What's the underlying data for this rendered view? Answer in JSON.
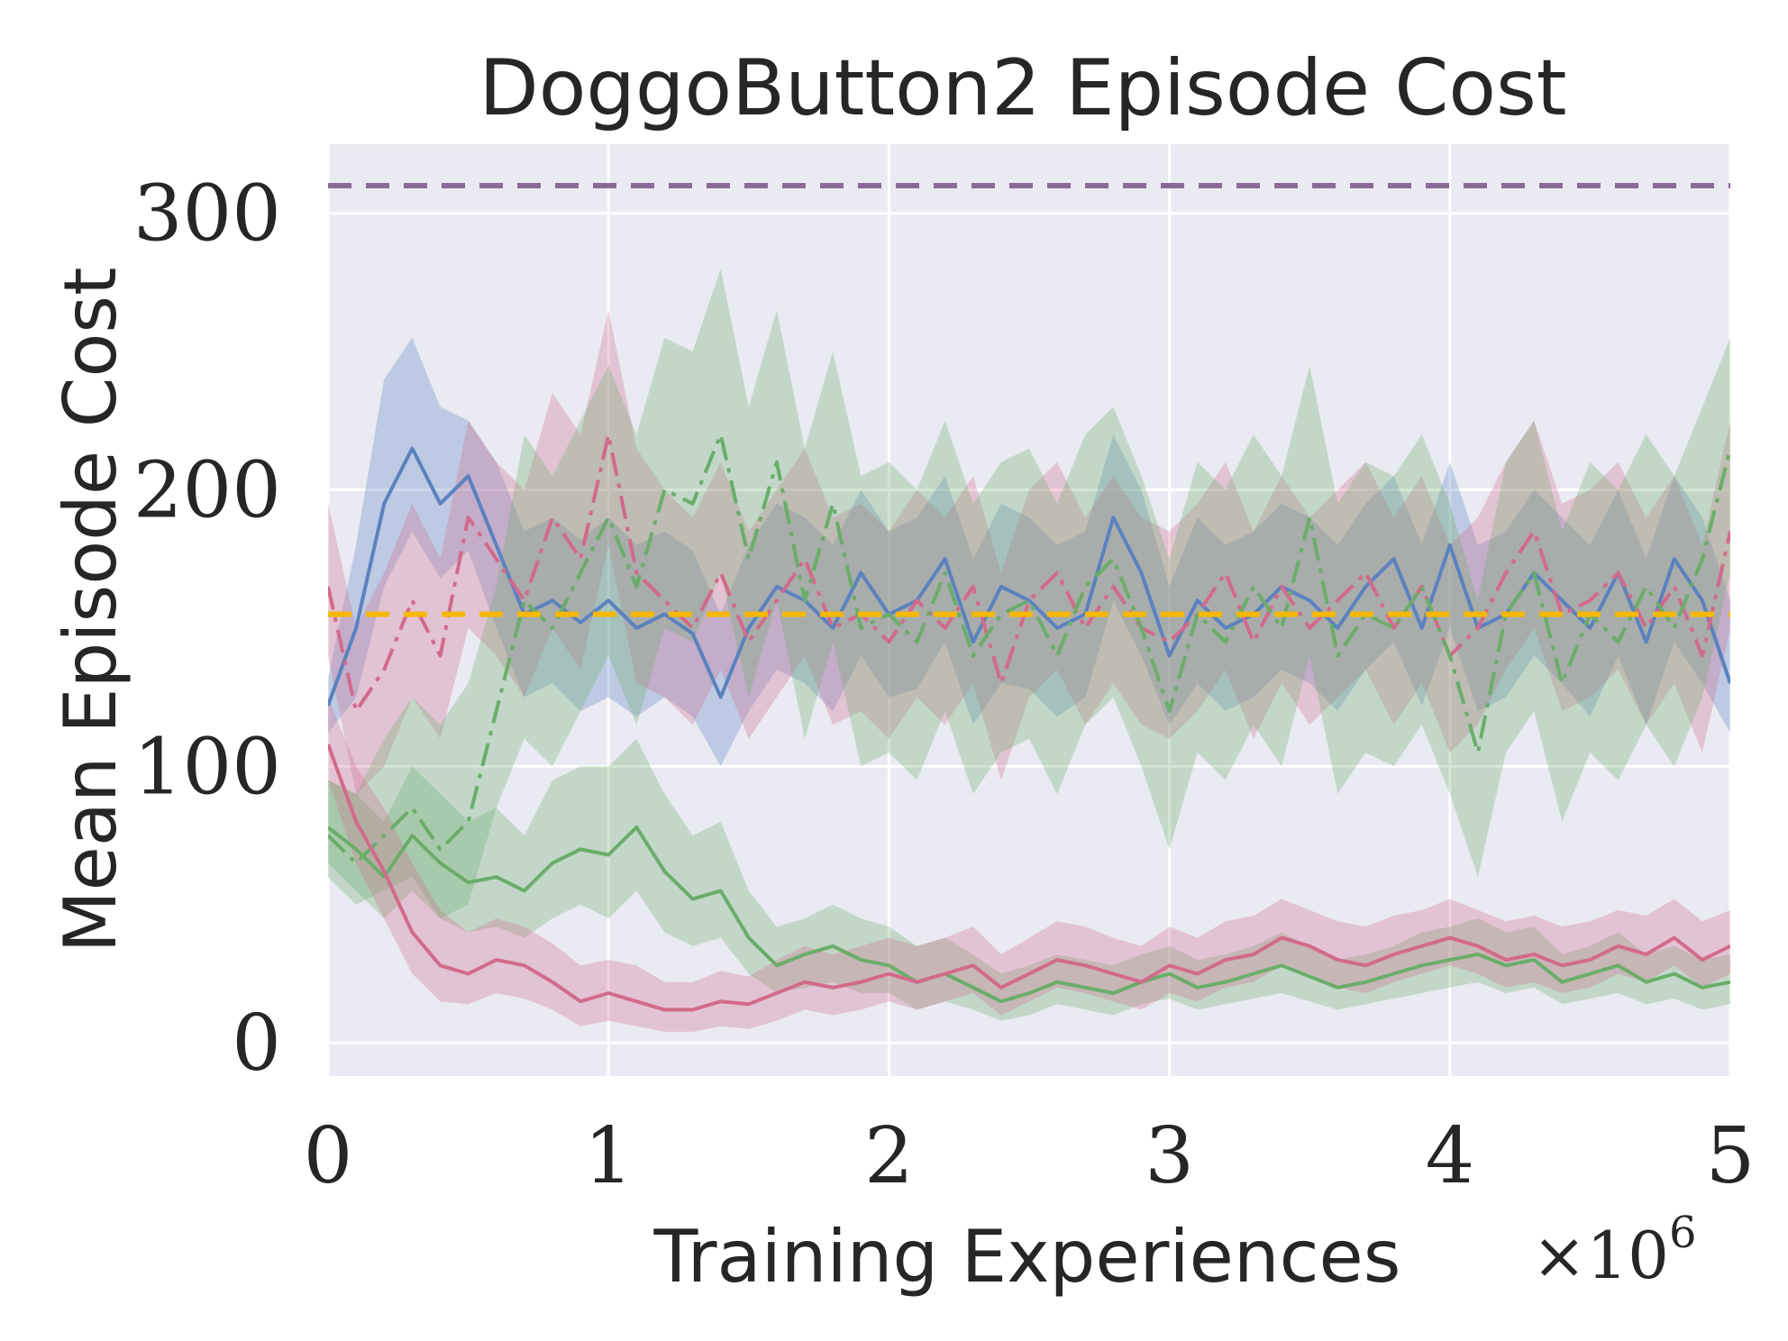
{
  "chart_data": {
    "type": "line",
    "title": "DoggoButton2 Episode Cost",
    "xlabel": "Training Experiences",
    "ylabel": "Mean Episode Cost",
    "x_multiplier": "×10",
    "x_multiplier_exp": "6",
    "xlim": [
      0,
      5
    ],
    "ylim": [
      -12,
      325
    ],
    "x_ticks": [
      0,
      1,
      2,
      3,
      4,
      5
    ],
    "x_tick_labels": [
      "0",
      "1",
      "2",
      "3",
      "4",
      "5"
    ],
    "y_ticks": [
      0,
      100,
      200,
      300
    ],
    "y_tick_labels": [
      "0",
      "100",
      "200",
      "300"
    ],
    "grid": true,
    "colors": {
      "background": "#eaeaf2",
      "grid": "#ffffff",
      "blue": "#5b82bf",
      "pink": "#d26a8b",
      "green": "#6aad6a",
      "purple": "#8a6a96",
      "gold": "#f5b800"
    },
    "reference_lines": [
      {
        "name": "upper-dashed",
        "y": 310,
        "color": "#8a6a96"
      },
      {
        "name": "cost-limit",
        "y": 155,
        "color": "#f5b800"
      }
    ],
    "series": [
      {
        "name": "blue-solid",
        "color": "#5b82bf",
        "style": "solid",
        "x": [
          0,
          0.1,
          0.2,
          0.3,
          0.4,
          0.5,
          0.6,
          0.7,
          0.8,
          0.9,
          1.0,
          1.1,
          1.2,
          1.3,
          1.4,
          1.5,
          1.6,
          1.7,
          1.8,
          1.9,
          2.0,
          2.1,
          2.2,
          2.3,
          2.4,
          2.5,
          2.6,
          2.7,
          2.8,
          2.9,
          3.0,
          3.1,
          3.2,
          3.3,
          3.4,
          3.5,
          3.6,
          3.7,
          3.8,
          3.9,
          4.0,
          4.1,
          4.2,
          4.3,
          4.4,
          4.5,
          4.6,
          4.7,
          4.8,
          4.9,
          5.0
        ],
        "y": [
          122,
          150,
          195,
          215,
          195,
          205,
          180,
          155,
          160,
          152,
          160,
          150,
          155,
          148,
          125,
          150,
          165,
          160,
          150,
          170,
          155,
          160,
          175,
          145,
          165,
          160,
          150,
          155,
          190,
          170,
          140,
          160,
          150,
          155,
          165,
          160,
          150,
          165,
          175,
          150,
          180,
          150,
          155,
          170,
          160,
          150,
          170,
          145,
          175,
          160,
          130
        ],
        "band_lower": [
          112,
          125,
          165,
          185,
          168,
          178,
          150,
          125,
          130,
          120,
          125,
          118,
          125,
          118,
          100,
          120,
          135,
          130,
          120,
          140,
          125,
          128,
          145,
          115,
          130,
          128,
          118,
          125,
          160,
          140,
          115,
          130,
          120,
          125,
          135,
          130,
          120,
          135,
          145,
          122,
          150,
          120,
          125,
          140,
          130,
          118,
          140,
          115,
          145,
          130,
          112
        ],
        "band_upper": [
          132,
          180,
          240,
          255,
          230,
          225,
          210,
          185,
          190,
          182,
          190,
          180,
          185,
          178,
          155,
          180,
          195,
          190,
          180,
          200,
          185,
          190,
          205,
          175,
          195,
          190,
          180,
          185,
          220,
          200,
          165,
          190,
          180,
          185,
          195,
          190,
          180,
          195,
          205,
          180,
          210,
          180,
          185,
          200,
          190,
          180,
          200,
          175,
          205,
          190,
          160
        ]
      },
      {
        "name": "pink-dashdot",
        "color": "#d26a8b",
        "style": "dashdot",
        "x": [
          0,
          0.1,
          0.2,
          0.3,
          0.4,
          0.5,
          0.6,
          0.7,
          0.8,
          0.9,
          1.0,
          1.1,
          1.2,
          1.3,
          1.4,
          1.5,
          1.6,
          1.7,
          1.8,
          1.9,
          2.0,
          2.1,
          2.2,
          2.3,
          2.4,
          2.5,
          2.6,
          2.7,
          2.8,
          2.9,
          3.0,
          3.1,
          3.2,
          3.3,
          3.4,
          3.5,
          3.6,
          3.7,
          3.8,
          3.9,
          4.0,
          4.1,
          4.2,
          4.3,
          4.4,
          4.5,
          4.6,
          4.7,
          4.8,
          4.9,
          5.0
        ],
        "y": [
          165,
          120,
          135,
          160,
          140,
          190,
          175,
          160,
          190,
          175,
          220,
          170,
          160,
          150,
          170,
          145,
          160,
          175,
          150,
          155,
          145,
          160,
          150,
          165,
          130,
          160,
          170,
          150,
          165,
          150,
          145,
          155,
          170,
          145,
          165,
          150,
          160,
          170,
          150,
          165,
          140,
          150,
          170,
          185,
          155,
          160,
          170,
          150,
          165,
          140,
          185
        ],
        "band_lower": [
          140,
          90,
          100,
          125,
          110,
          150,
          140,
          125,
          150,
          135,
          180,
          130,
          125,
          115,
          135,
          110,
          125,
          140,
          115,
          120,
          110,
          125,
          115,
          130,
          95,
          125,
          135,
          115,
          130,
          115,
          110,
          120,
          135,
          110,
          130,
          115,
          125,
          135,
          115,
          130,
          105,
          115,
          135,
          150,
          120,
          125,
          135,
          115,
          130,
          105,
          150
        ],
        "band_upper": [
          195,
          150,
          170,
          195,
          175,
          225,
          210,
          200,
          235,
          220,
          265,
          215,
          200,
          190,
          210,
          185,
          200,
          215,
          190,
          195,
          185,
          200,
          190,
          205,
          170,
          200,
          210,
          190,
          205,
          190,
          185,
          195,
          210,
          185,
          205,
          190,
          200,
          210,
          190,
          205,
          180,
          190,
          210,
          225,
          195,
          200,
          210,
          190,
          205,
          180,
          225
        ]
      },
      {
        "name": "green-dashdot",
        "color": "#6aad6a",
        "style": "dashdot",
        "x": [
          0,
          0.1,
          0.2,
          0.3,
          0.4,
          0.5,
          0.6,
          0.7,
          0.8,
          0.9,
          1.0,
          1.1,
          1.2,
          1.3,
          1.4,
          1.5,
          1.6,
          1.7,
          1.8,
          1.9,
          2.0,
          2.1,
          2.2,
          2.3,
          2.4,
          2.5,
          2.6,
          2.7,
          2.8,
          2.9,
          3.0,
          3.1,
          3.2,
          3.3,
          3.4,
          3.5,
          3.6,
          3.7,
          3.8,
          3.9,
          4.0,
          4.1,
          4.2,
          4.3,
          4.4,
          4.5,
          4.6,
          4.7,
          4.8,
          4.9,
          5.0
        ],
        "y": [
          75,
          65,
          75,
          85,
          70,
          80,
          120,
          160,
          150,
          170,
          190,
          165,
          200,
          195,
          220,
          175,
          210,
          160,
          195,
          150,
          155,
          145,
          170,
          140,
          155,
          160,
          140,
          165,
          175,
          150,
          120,
          155,
          145,
          165,
          150,
          190,
          140,
          155,
          150,
          165,
          140,
          105,
          155,
          170,
          130,
          155,
          145,
          165,
          150,
          175,
          215
        ],
        "band_lower": [
          60,
          50,
          55,
          60,
          45,
          50,
          85,
          110,
          100,
          120,
          140,
          115,
          150,
          145,
          170,
          125,
          160,
          110,
          145,
          100,
          105,
          95,
          120,
          90,
          105,
          110,
          90,
          115,
          125,
          100,
          70,
          105,
          95,
          115,
          100,
          140,
          90,
          105,
          100,
          115,
          90,
          60,
          105,
          120,
          80,
          105,
          95,
          115,
          100,
          125,
          170
        ],
        "band_upper": [
          95,
          90,
          110,
          125,
          115,
          130,
          165,
          220,
          205,
          225,
          245,
          220,
          255,
          250,
          280,
          230,
          265,
          215,
          250,
          205,
          210,
          200,
          225,
          195,
          210,
          215,
          195,
          220,
          230,
          205,
          175,
          210,
          200,
          220,
          205,
          245,
          195,
          210,
          205,
          220,
          195,
          160,
          210,
          225,
          185,
          210,
          200,
          220,
          205,
          230,
          255
        ]
      },
      {
        "name": "green-solid",
        "color": "#6aad6a",
        "style": "solid",
        "x": [
          0,
          0.1,
          0.2,
          0.3,
          0.4,
          0.5,
          0.6,
          0.7,
          0.8,
          0.9,
          1.0,
          1.1,
          1.2,
          1.3,
          1.4,
          1.5,
          1.6,
          1.7,
          1.8,
          1.9,
          2.0,
          2.1,
          2.2,
          2.3,
          2.4,
          2.5,
          2.6,
          2.7,
          2.8,
          2.9,
          3.0,
          3.1,
          3.2,
          3.3,
          3.4,
          3.5,
          3.6,
          3.7,
          3.8,
          3.9,
          4.0,
          4.1,
          4.2,
          4.3,
          4.4,
          4.5,
          4.6,
          4.7,
          4.8,
          4.9,
          5.0
        ],
        "y": [
          78,
          70,
          60,
          75,
          65,
          58,
          60,
          55,
          65,
          70,
          68,
          78,
          62,
          52,
          55,
          38,
          28,
          32,
          35,
          30,
          28,
          22,
          25,
          20,
          15,
          18,
          22,
          20,
          18,
          22,
          25,
          20,
          22,
          25,
          28,
          24,
          20,
          22,
          25,
          28,
          30,
          32,
          28,
          30,
          22,
          25,
          28,
          22,
          25,
          20,
          22
        ],
        "band_lower": [
          65,
          55,
          45,
          55,
          45,
          40,
          42,
          38,
          45,
          50,
          45,
          55,
          40,
          35,
          38,
          25,
          18,
          20,
          22,
          18,
          18,
          12,
          15,
          12,
          8,
          10,
          14,
          12,
          10,
          14,
          16,
          12,
          14,
          16,
          18,
          15,
          12,
          14,
          16,
          18,
          20,
          22,
          18,
          20,
          14,
          16,
          18,
          14,
          16,
          12,
          14
        ],
        "band_upper": [
          95,
          90,
          80,
          100,
          90,
          80,
          85,
          75,
          95,
          100,
          100,
          110,
          90,
          75,
          80,
          55,
          42,
          45,
          50,
          45,
          42,
          35,
          38,
          32,
          25,
          28,
          32,
          30,
          28,
          32,
          35,
          30,
          32,
          35,
          40,
          35,
          30,
          32,
          35,
          40,
          42,
          45,
          40,
          42,
          32,
          35,
          40,
          32,
          35,
          30,
          32
        ]
      },
      {
        "name": "pink-solid",
        "color": "#d26a8b",
        "style": "solid",
        "x": [
          0,
          0.1,
          0.2,
          0.3,
          0.4,
          0.5,
          0.6,
          0.7,
          0.8,
          0.9,
          1.0,
          1.1,
          1.2,
          1.3,
          1.4,
          1.5,
          1.6,
          1.7,
          1.8,
          1.9,
          2.0,
          2.1,
          2.2,
          2.3,
          2.4,
          2.5,
          2.6,
          2.7,
          2.8,
          2.9,
          3.0,
          3.1,
          3.2,
          3.3,
          3.4,
          3.5,
          3.6,
          3.7,
          3.8,
          3.9,
          4.0,
          4.1,
          4.2,
          4.3,
          4.4,
          4.5,
          4.6,
          4.7,
          4.8,
          4.9,
          5.0
        ],
        "y": [
          108,
          80,
          62,
          40,
          28,
          25,
          30,
          28,
          22,
          15,
          18,
          15,
          12,
          12,
          15,
          14,
          18,
          22,
          20,
          22,
          25,
          22,
          25,
          28,
          20,
          25,
          30,
          28,
          25,
          22,
          28,
          25,
          30,
          32,
          38,
          35,
          30,
          28,
          32,
          35,
          38,
          35,
          30,
          32,
          28,
          30,
          35,
          32,
          38,
          30,
          35
        ],
        "band_lower": [
          95,
          65,
          45,
          25,
          15,
          14,
          18,
          16,
          12,
          6,
          8,
          6,
          4,
          4,
          6,
          5,
          8,
          12,
          10,
          12,
          15,
          12,
          15,
          18,
          10,
          15,
          20,
          18,
          15,
          12,
          18,
          15,
          20,
          22,
          28,
          25,
          20,
          18,
          22,
          25,
          28,
          25,
          20,
          22,
          18,
          20,
          25,
          22,
          28,
          20,
          25
        ],
        "band_upper": [
          125,
          100,
          85,
          65,
          48,
          40,
          45,
          42,
          36,
          28,
          30,
          28,
          22,
          22,
          26,
          24,
          30,
          35,
          32,
          35,
          38,
          35,
          38,
          42,
          32,
          38,
          44,
          42,
          38,
          35,
          42,
          38,
          44,
          46,
          52,
          48,
          44,
          42,
          46,
          48,
          52,
          48,
          44,
          46,
          42,
          44,
          48,
          46,
          52,
          44,
          48
        ]
      }
    ]
  }
}
